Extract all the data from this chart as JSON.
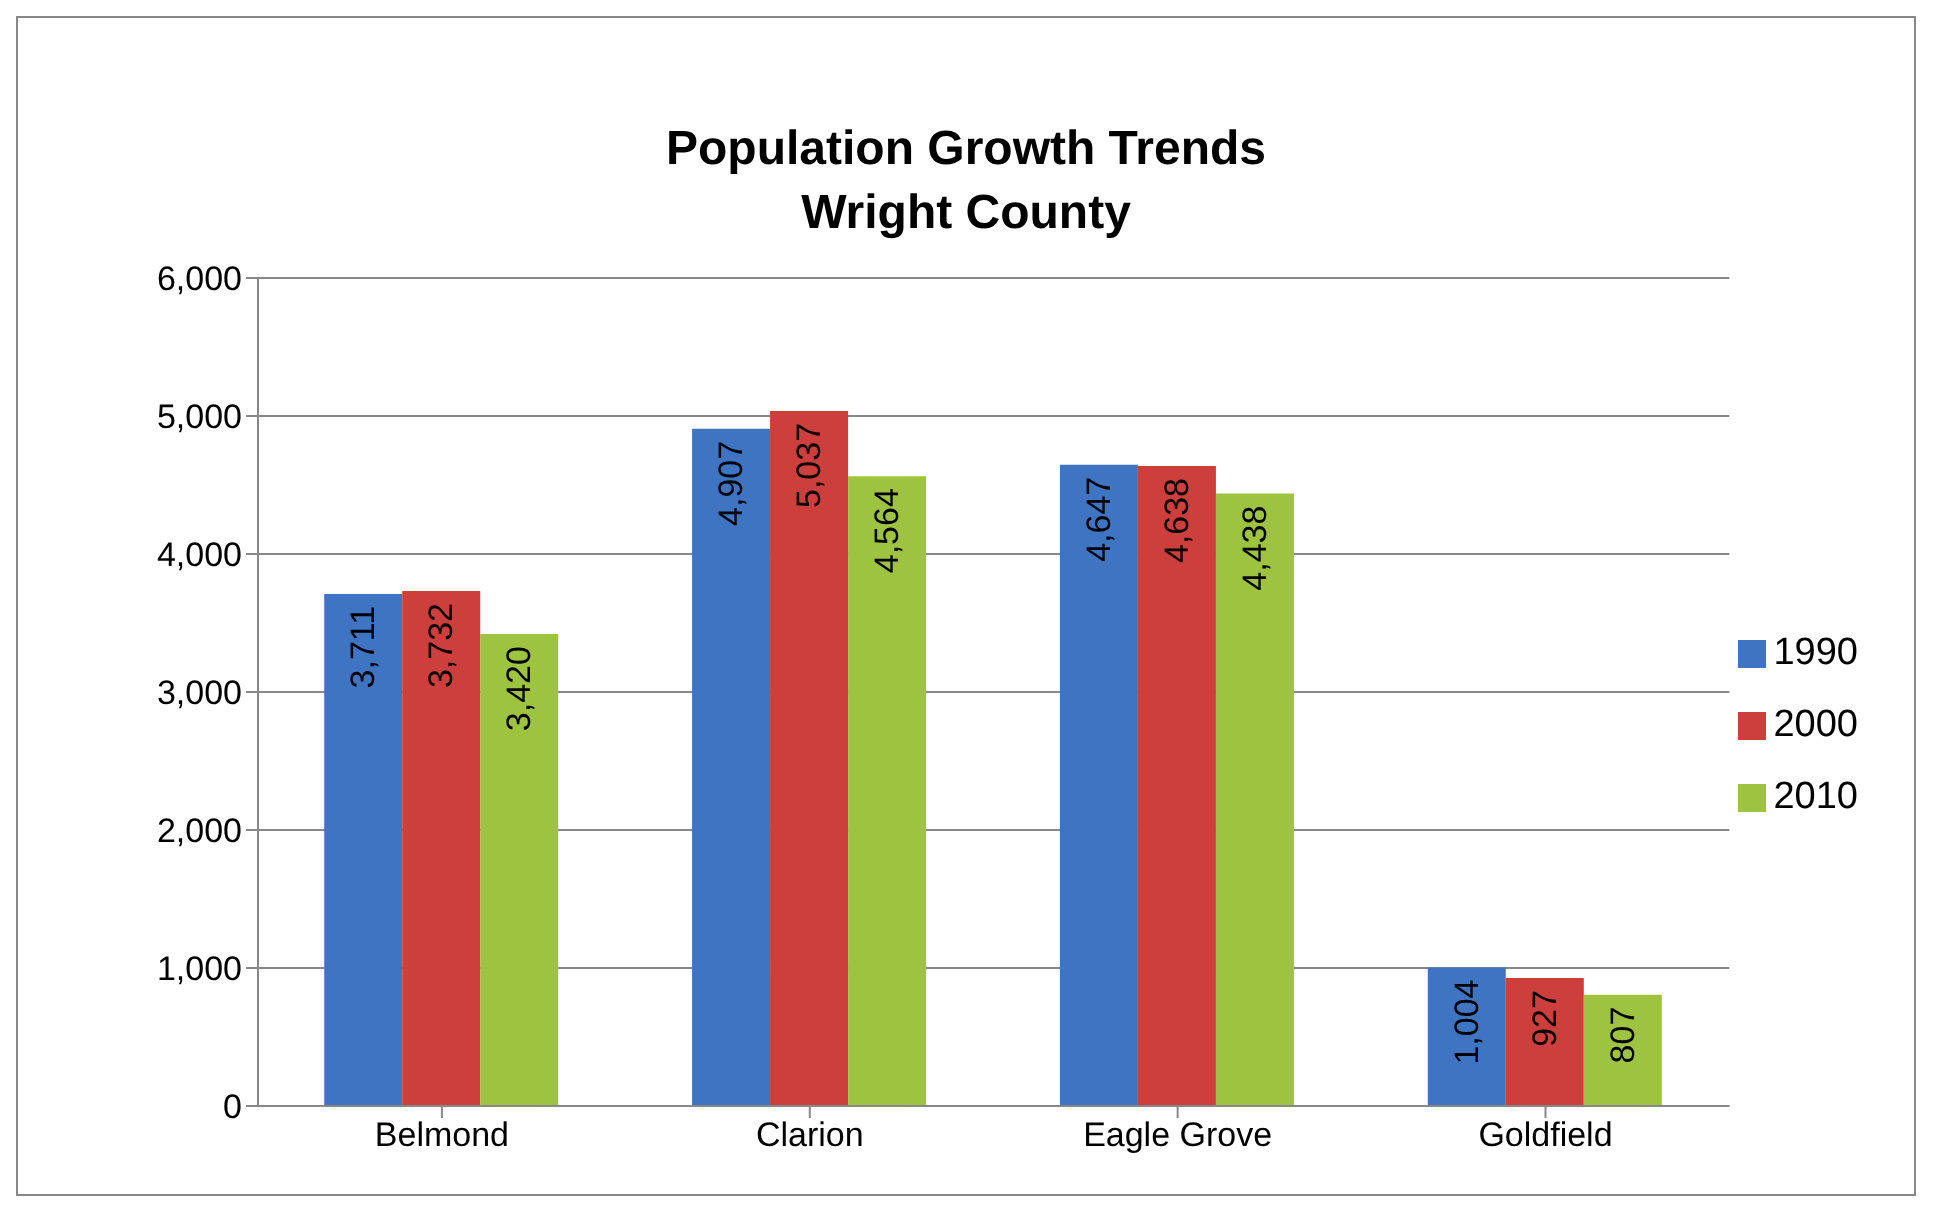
{
  "chart_data": {
    "type": "bar",
    "title": "Population Growth Trends",
    "subtitle": "Wright County",
    "categories": [
      "Belmond",
      "Clarion",
      "Eagle Grove",
      "Goldfield"
    ],
    "series": [
      {
        "name": "1990",
        "color": "#3f74c2",
        "values": [
          3711,
          4907,
          4647,
          1004
        ],
        "value_labels": [
          "3,711",
          "4,907",
          "4,647",
          "1,004"
        ]
      },
      {
        "name": "2000",
        "color": "#cc3f3c",
        "values": [
          3732,
          5037,
          4638,
          927
        ],
        "value_labels": [
          "3,732",
          "5,037",
          "4,638",
          "927"
        ]
      },
      {
        "name": "2010",
        "color": "#9dc341",
        "values": [
          3420,
          4564,
          4438,
          807
        ],
        "value_labels": [
          "3,420",
          "4,564",
          "4,438",
          "807"
        ]
      }
    ],
    "ylim": [
      0,
      6000
    ],
    "yticks": [
      {
        "value": 0,
        "label": "0"
      },
      {
        "value": 1000,
        "label": "1,000"
      },
      {
        "value": 2000,
        "label": "2,000"
      },
      {
        "value": 3000,
        "label": "3,000"
      },
      {
        "value": 4000,
        "label": "4,000"
      },
      {
        "value": 5000,
        "label": "5,000"
      },
      {
        "value": 6000,
        "label": "6,000"
      }
    ],
    "grid": "y",
    "legend": "right"
  }
}
